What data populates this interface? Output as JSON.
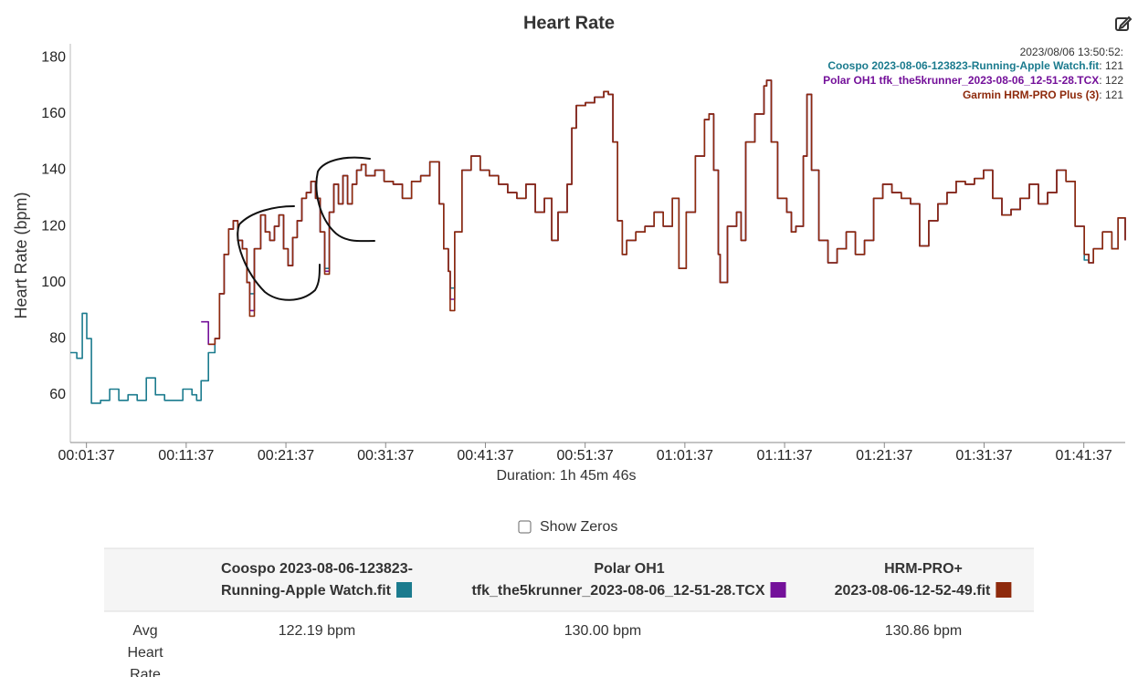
{
  "chart_data": {
    "type": "line",
    "title": "Heart Rate",
    "ylabel": "Heart Rate (bpm)",
    "xlabel": "Duration: 1h 45m 46s",
    "xlim": [
      0,
      6346
    ],
    "ylim": [
      43,
      185
    ],
    "grid": false,
    "xticks": [
      {
        "value": 97,
        "label": "00:01:37"
      },
      {
        "value": 697,
        "label": "00:11:37"
      },
      {
        "value": 1297,
        "label": "00:21:37"
      },
      {
        "value": 1897,
        "label": "00:31:37"
      },
      {
        "value": 2497,
        "label": "00:41:37"
      },
      {
        "value": 3097,
        "label": "00:51:37"
      },
      {
        "value": 3697,
        "label": "01:01:37"
      },
      {
        "value": 4297,
        "label": "01:11:37"
      },
      {
        "value": 4897,
        "label": "01:21:37"
      },
      {
        "value": 5497,
        "label": "01:31:37"
      },
      {
        "value": 6097,
        "label": "01:41:37"
      }
    ],
    "yticks": [
      60,
      80,
      100,
      120,
      140,
      160,
      180
    ],
    "x": [
      0,
      39,
      72,
      99,
      127,
      182,
      237,
      292,
      347,
      402,
      457,
      512,
      567,
      622,
      677,
      732,
      760,
      787,
      831,
      870,
      897,
      925,
      952,
      980,
      1007,
      1035,
      1062,
      1079,
      1107,
      1145,
      1173,
      1200,
      1228,
      1255,
      1283,
      1310,
      1338,
      1365,
      1393,
      1420,
      1448,
      1475,
      1503,
      1530,
      1558,
      1585,
      1613,
      1640,
      1668,
      1696,
      1723,
      1751,
      1778,
      1833,
      1888,
      1943,
      1998,
      2053,
      2108,
      2163,
      2219,
      2246,
      2274,
      2285,
      2312,
      2356,
      2411,
      2466,
      2521,
      2576,
      2631,
      2686,
      2741,
      2797,
      2852,
      2896,
      2934,
      2989,
      3017,
      3044,
      3099,
      3154,
      3209,
      3237,
      3264,
      3292,
      3320,
      3347,
      3402,
      3457,
      3512,
      3567,
      3622,
      3661,
      3705,
      3760,
      3815,
      3842,
      3870,
      3898,
      3909,
      3953,
      4008,
      4035,
      4063,
      4118,
      4173,
      4189,
      4217,
      4255,
      4310,
      4338,
      4365,
      4410,
      4432,
      4459,
      4503,
      4558,
      4613,
      4668,
      4723,
      4778,
      4833,
      4888,
      4943,
      4999,
      5054,
      5109,
      5164,
      5219,
      5274,
      5329,
      5384,
      5439,
      5494,
      5549,
      5604,
      5659,
      5714,
      5769,
      5824,
      5879,
      5934,
      5990,
      6045,
      6100,
      6127,
      6155,
      6210,
      6265,
      6303,
      6346
    ],
    "series": [
      {
        "name": "Coospo 2023-08-06-123823-Running-Apple Watch.fit",
        "color": "#1b7b8e",
        "values": [
          75,
          73,
          89,
          80,
          57,
          58,
          62,
          58,
          60,
          58,
          66,
          60,
          58,
          58,
          62,
          60,
          58,
          65,
          75,
          80,
          96,
          110,
          119,
          122,
          115,
          112,
          100,
          96,
          112,
          124,
          118,
          115,
          120,
          124,
          112,
          106,
          116,
          122,
          130,
          132,
          136,
          130,
          118,
          105,
          125,
          135,
          128,
          138,
          128,
          135,
          140,
          142,
          138,
          140,
          136,
          135,
          130,
          136,
          138,
          143,
          128,
          112,
          104,
          98,
          118,
          140,
          145,
          140,
          138,
          135,
          132,
          130,
          135,
          125,
          130,
          115,
          125,
          135,
          155,
          163,
          164,
          166,
          168,
          167,
          150,
          122,
          110,
          115,
          118,
          120,
          125,
          120,
          130,
          105,
          125,
          145,
          158,
          160,
          140,
          110,
          100,
          120,
          125,
          115,
          150,
          160,
          170,
          172,
          150,
          130,
          125,
          118,
          120,
          145,
          167,
          140,
          115,
          107,
          112,
          118,
          110,
          115,
          130,
          135,
          132,
          130,
          128,
          113,
          122,
          128,
          132,
          136,
          135,
          137,
          140,
          130,
          124,
          126,
          130,
          135,
          128,
          132,
          140,
          136,
          120,
          108,
          107,
          112,
          118,
          112,
          123,
          115
        ]
      },
      {
        "name": "Polar OH1 tfk_the5krunner_2023-08-06_12-51-28.TCX",
        "color": "#74119a",
        "values": [
          null,
          null,
          null,
          null,
          null,
          null,
          null,
          null,
          null,
          null,
          null,
          null,
          null,
          null,
          null,
          null,
          null,
          86,
          78,
          80,
          96,
          110,
          119,
          122,
          115,
          112,
          100,
          90,
          112,
          124,
          118,
          115,
          120,
          124,
          112,
          106,
          116,
          122,
          130,
          132,
          136,
          130,
          118,
          104,
          125,
          135,
          128,
          138,
          128,
          135,
          140,
          142,
          138,
          140,
          136,
          135,
          130,
          136,
          138,
          143,
          128,
          112,
          104,
          94,
          118,
          140,
          145,
          140,
          138,
          135,
          132,
          130,
          135,
          125,
          130,
          115,
          125,
          135,
          155,
          163,
          164,
          166,
          168,
          167,
          150,
          122,
          110,
          115,
          118,
          120,
          125,
          120,
          130,
          105,
          125,
          145,
          158,
          160,
          140,
          110,
          100,
          120,
          125,
          115,
          150,
          160,
          170,
          172,
          150,
          130,
          125,
          118,
          120,
          145,
          167,
          140,
          115,
          107,
          112,
          118,
          110,
          115,
          130,
          135,
          132,
          130,
          128,
          113,
          122,
          128,
          132,
          136,
          135,
          137,
          140,
          130,
          124,
          126,
          130,
          135,
          128,
          132,
          140,
          136,
          120,
          110,
          107,
          112,
          118,
          112,
          123,
          115
        ]
      },
      {
        "name": "Garmin HRM-PRO Plus (3)",
        "color": "#8e2a0c",
        "values": [
          null,
          null,
          null,
          null,
          null,
          null,
          null,
          null,
          null,
          null,
          null,
          null,
          null,
          null,
          null,
          null,
          null,
          null,
          78,
          80,
          96,
          110,
          119,
          122,
          115,
          112,
          100,
          88,
          112,
          124,
          118,
          115,
          120,
          124,
          112,
          106,
          116,
          122,
          130,
          132,
          136,
          130,
          118,
          103,
          125,
          135,
          128,
          138,
          128,
          135,
          140,
          142,
          138,
          140,
          136,
          135,
          130,
          136,
          138,
          143,
          128,
          112,
          104,
          90,
          118,
          140,
          145,
          140,
          138,
          135,
          132,
          130,
          135,
          125,
          130,
          115,
          125,
          135,
          155,
          163,
          164,
          166,
          168,
          167,
          150,
          122,
          110,
          115,
          118,
          120,
          125,
          120,
          130,
          105,
          125,
          145,
          158,
          160,
          140,
          110,
          100,
          120,
          125,
          115,
          150,
          160,
          170,
          172,
          150,
          130,
          125,
          118,
          120,
          145,
          167,
          140,
          115,
          107,
          112,
          118,
          110,
          115,
          130,
          135,
          132,
          130,
          128,
          113,
          122,
          128,
          132,
          136,
          135,
          137,
          140,
          130,
          124,
          126,
          130,
          135,
          128,
          132,
          140,
          136,
          120,
          110,
          107,
          112,
          118,
          112,
          123,
          115
        ]
      }
    ],
    "tooltip": {
      "time": "2023/08/06 13:50:52:",
      "values": [
        121,
        122,
        121
      ]
    }
  },
  "controls": {
    "show_zeros": "Show Zeros"
  },
  "table": {
    "headers": [
      [
        "Coospo 2023-08-06-123823-",
        "Running-Apple Watch.fit"
      ],
      [
        "Polar OH1",
        "tfk_the5krunner_2023-08-06_12-51-28.TCX"
      ],
      [
        "HRM-PRO+",
        "2023-08-06-12-52-49.fit"
      ]
    ],
    "rows": [
      {
        "label": [
          "Avg",
          "Heart",
          "Rate"
        ],
        "cells": [
          "122.19 bpm",
          "130.00 bpm",
          "130.86 bpm"
        ]
      }
    ]
  }
}
